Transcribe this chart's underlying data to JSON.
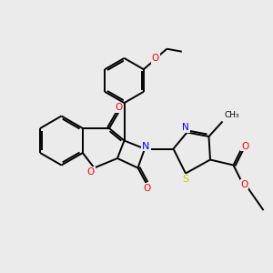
{
  "background_color": "#ebebeb",
  "bond_color": "#000000",
  "atom_colors": {
    "O": "#ff0000",
    "N": "#0000ff",
    "S": "#cccc00",
    "C": "#000000"
  },
  "figsize": [
    3.0,
    3.0
  ],
  "dpi": 100,
  "lw": 1.4,
  "dbl_off": 0.07
}
